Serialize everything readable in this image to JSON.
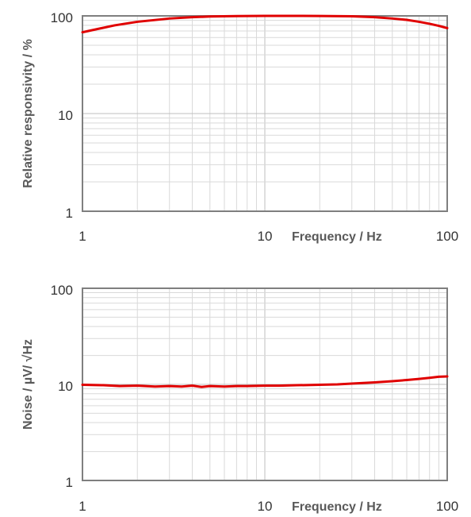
{
  "chart_data": [
    {
      "type": "line",
      "xscale": "log",
      "yscale": "log",
      "xlim": [
        1,
        100
      ],
      "ylim": [
        1,
        100
      ],
      "grid": true,
      "xlabel": "Frequency / Hz",
      "ylabel": "Relative responsivity / %",
      "x_tick_labels": [
        "1",
        "10",
        "100"
      ],
      "y_tick_labels": [
        "1",
        "10",
        "100"
      ],
      "line_color": "#e00000",
      "series": [
        {
          "x": [
            1,
            1.5,
            2,
            3,
            4,
            5,
            7,
            10,
            15,
            20,
            30,
            40,
            50,
            60,
            70,
            80,
            90,
            100
          ],
          "y": [
            68,
            80,
            87,
            94,
            97,
            98.5,
            99.5,
            100,
            100,
            99.8,
            99,
            97,
            94,
            91,
            87,
            83,
            79,
            75
          ]
        }
      ]
    },
    {
      "type": "line",
      "xscale": "log",
      "yscale": "log",
      "xlim": [
        1,
        100
      ],
      "ylim": [
        1,
        100
      ],
      "grid": true,
      "xlabel": "Frequency / Hz",
      "ylabel": "Noise / µV/ √Hz",
      "x_tick_labels": [
        "1",
        "10",
        "100"
      ],
      "y_tick_labels": [
        "1",
        "10",
        "100"
      ],
      "line_color": "#e00000",
      "series": [
        {
          "x": [
            1,
            1.3,
            1.6,
            2,
            2.5,
            3,
            3.5,
            4,
            4.5,
            5,
            6,
            7,
            8,
            10,
            12,
            15,
            20,
            25,
            30,
            40,
            50,
            60,
            70,
            80,
            90,
            100
          ],
          "y": [
            9.9,
            9.8,
            9.6,
            9.7,
            9.5,
            9.6,
            9.5,
            9.7,
            9.4,
            9.6,
            9.5,
            9.6,
            9.6,
            9.7,
            9.7,
            9.8,
            9.9,
            10.0,
            10.2,
            10.5,
            10.8,
            11.1,
            11.4,
            11.7,
            12.0,
            12.1
          ]
        }
      ]
    }
  ]
}
